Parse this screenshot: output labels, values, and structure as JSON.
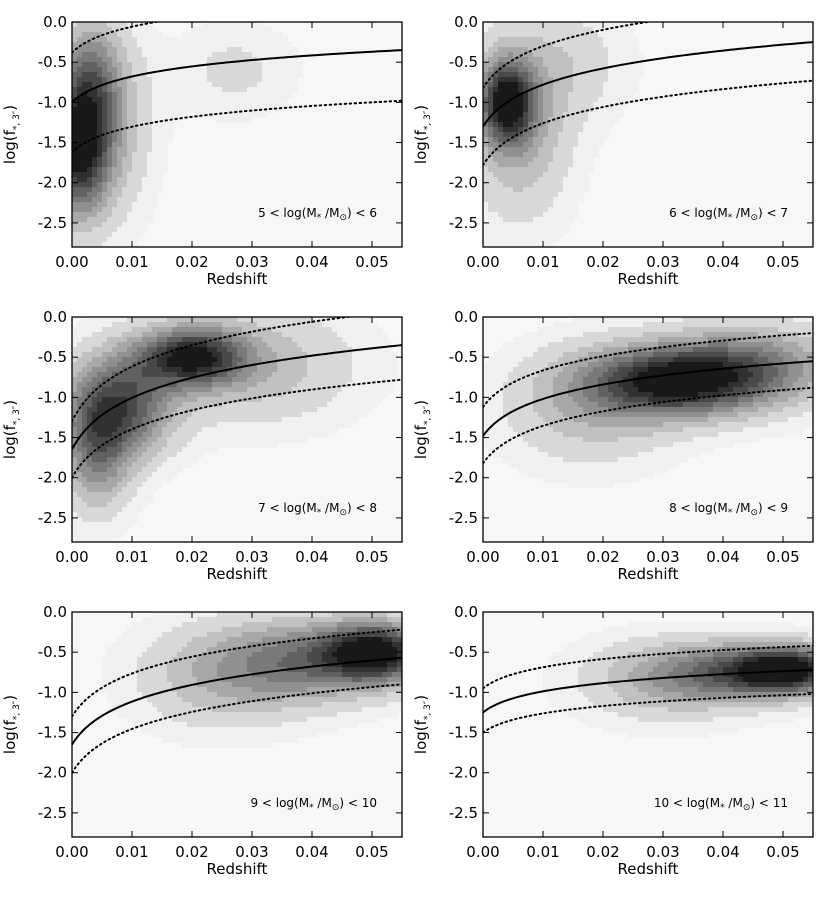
{
  "figure": {
    "xlabel": "Redshift",
    "ylabel_main": "log(f",
    "ylabel_sub": "*, 3″",
    "ylabel_close": ")"
  },
  "chart_data": [
    {
      "type": "heatmap",
      "panel": "5 < log(M*/M⊙) < 6",
      "annotation": {
        "pre": "5 < log(M",
        "sub1": "*",
        "mid": " /M",
        "sub2": "⊙",
        "post": ") < 6"
      },
      "xlabel": "Redshift",
      "ylabel": "log(f*, 3″)",
      "xlim": [
        0.0,
        0.055
      ],
      "ylim": [
        -2.8,
        0.0
      ],
      "xticks": [
        "0.00",
        "0.01",
        "0.02",
        "0.03",
        "0.04",
        "0.05"
      ],
      "yticks": [
        "0.0",
        "-0.5",
        "-1.0",
        "-1.5",
        "-2.0",
        "-2.5"
      ],
      "density_blobs": [
        {
          "x": 0.001,
          "y": -1.6,
          "sx": 0.0035,
          "sy": 0.55,
          "amp": 0.95
        },
        {
          "x": 0.003,
          "y": -0.7,
          "sx": 0.0035,
          "sy": 0.5,
          "amp": 0.45
        },
        {
          "x": 0.006,
          "y": -1.3,
          "sx": 0.005,
          "sy": 0.8,
          "amp": 0.3
        },
        {
          "x": 0.027,
          "y": -0.6,
          "sx": 0.007,
          "sy": 0.4,
          "amp": 0.14
        }
      ],
      "median_curve": {
        "y0": -1.0,
        "y_end": -0.35
      },
      "upper_curve": {
        "y0": -0.38,
        "y_end": 0.27
      },
      "lower_curve": {
        "y0": -1.62,
        "y_end": -0.98
      }
    },
    {
      "type": "heatmap",
      "panel": "6 < log(M*/M⊙) < 7",
      "annotation": {
        "pre": "6 < log(M",
        "sub1": "*",
        "mid": " /M",
        "sub2": "⊙",
        "post": ") < 7"
      },
      "xlabel": "Redshift",
      "ylabel": "log(f*, 3″)",
      "xlim": [
        0.0,
        0.055
      ],
      "ylim": [
        -2.8,
        0.0
      ],
      "xticks": [
        "0.00",
        "0.01",
        "0.02",
        "0.03",
        "0.04",
        "0.05"
      ],
      "yticks": [
        "0.0",
        "-0.5",
        "-1.0",
        "-1.5",
        "-2.0",
        "-2.5"
      ],
      "density_blobs": [
        {
          "x": 0.004,
          "y": -1.0,
          "sx": 0.003,
          "sy": 0.35,
          "amp": 0.95
        },
        {
          "x": 0.006,
          "y": -1.3,
          "sx": 0.006,
          "sy": 0.8,
          "amp": 0.35
        },
        {
          "x": 0.015,
          "y": -0.5,
          "sx": 0.007,
          "sy": 0.5,
          "amp": 0.15
        }
      ],
      "median_curve": {
        "y0": -1.3,
        "y_end": -0.25
      },
      "upper_curve": {
        "y0": -0.82,
        "y_end": 0.23
      },
      "lower_curve": {
        "y0": -1.78,
        "y_end": -0.73
      }
    },
    {
      "type": "heatmap",
      "panel": "7 < log(M*/M⊙) < 8",
      "annotation": {
        "pre": "7 < log(M",
        "sub1": "*",
        "mid": " /M",
        "sub2": "⊙",
        "post": ") < 8"
      },
      "xlabel": "Redshift",
      "ylabel": "log(f*, 3″)",
      "xlim": [
        0.0,
        0.055
      ],
      "ylim": [
        -2.8,
        0.0
      ],
      "xticks": [
        "0.00",
        "0.01",
        "0.02",
        "0.03",
        "0.04",
        "0.05"
      ],
      "yticks": [
        "0.0",
        "-0.5",
        "-1.0",
        "-1.5",
        "-2.0",
        "-2.5"
      ],
      "density_blobs": [
        {
          "x": 0.02,
          "y": -0.5,
          "sx": 0.006,
          "sy": 0.25,
          "amp": 0.9
        },
        {
          "x": 0.008,
          "y": -1.1,
          "sx": 0.006,
          "sy": 0.45,
          "amp": 0.75
        },
        {
          "x": 0.004,
          "y": -1.7,
          "sx": 0.004,
          "sy": 0.5,
          "amp": 0.5
        },
        {
          "x": 0.03,
          "y": -0.6,
          "sx": 0.012,
          "sy": 0.5,
          "amp": 0.3
        }
      ],
      "median_curve": {
        "y0": -1.65,
        "y_end": -0.35
      },
      "upper_curve": {
        "y0": -1.3,
        "y_end": 0.08
      },
      "lower_curve": {
        "y0": -2.0,
        "y_end": -0.78
      }
    },
    {
      "type": "heatmap",
      "panel": "8 < log(M*/M⊙) < 9",
      "annotation": {
        "pre": "8 < log(M",
        "sub1": "*",
        "mid": " /M",
        "sub2": "⊙",
        "post": ") < 9"
      },
      "xlabel": "Redshift",
      "ylabel": "log(f*, 3″)",
      "xlim": [
        0.0,
        0.055
      ],
      "ylim": [
        -2.8,
        0.0
      ],
      "xticks": [
        "0.00",
        "0.01",
        "0.02",
        "0.03",
        "0.04",
        "0.05"
      ],
      "yticks": [
        "0.0",
        "-0.5",
        "-1.0",
        "-1.5",
        "-2.0",
        "-2.5"
      ],
      "density_blobs": [
        {
          "x": 0.032,
          "y": -0.8,
          "sx": 0.01,
          "sy": 0.3,
          "amp": 0.95
        },
        {
          "x": 0.045,
          "y": -0.6,
          "sx": 0.01,
          "sy": 0.35,
          "amp": 0.5
        },
        {
          "x": 0.018,
          "y": -1.1,
          "sx": 0.01,
          "sy": 0.5,
          "amp": 0.3
        }
      ],
      "median_curve": {
        "y0": -1.48,
        "y_end": -0.55
      },
      "upper_curve": {
        "y0": -1.12,
        "y_end": -0.2
      },
      "lower_curve": {
        "y0": -1.82,
        "y_end": -0.88
      }
    },
    {
      "type": "heatmap",
      "panel": "9 < log(M*/M⊙) < 10",
      "annotation": {
        "pre": "9 < log(M",
        "sub1": "*",
        "mid": " /M",
        "sub2": "⊙",
        "post": ") < 10"
      },
      "xlabel": "Redshift",
      "ylabel": "log(f*, 3″)",
      "xlim": [
        0.0,
        0.055
      ],
      "ylim": [
        -2.8,
        0.0
      ],
      "xticks": [
        "0.00",
        "0.01",
        "0.02",
        "0.03",
        "0.04",
        "0.05"
      ],
      "yticks": [
        "0.0",
        "-0.5",
        "-1.0",
        "-1.5",
        "-2.0",
        "-2.5"
      ],
      "density_blobs": [
        {
          "x": 0.051,
          "y": -0.5,
          "sx": 0.006,
          "sy": 0.25,
          "amp": 0.95
        },
        {
          "x": 0.04,
          "y": -0.6,
          "sx": 0.01,
          "sy": 0.35,
          "amp": 0.55
        },
        {
          "x": 0.025,
          "y": -0.8,
          "sx": 0.01,
          "sy": 0.45,
          "amp": 0.3
        }
      ],
      "median_curve": {
        "y0": -1.65,
        "y_end": -0.57
      },
      "upper_curve": {
        "y0": -1.3,
        "y_end": -0.22
      },
      "lower_curve": {
        "y0": -2.0,
        "y_end": -0.9
      }
    },
    {
      "type": "heatmap",
      "panel": "10 < log(M*/M⊙) < 11",
      "annotation": {
        "pre": "10 < log(M",
        "sub1": "*",
        "mid": " /M",
        "sub2": "⊙",
        "post": ") < 11"
      },
      "xlabel": "Redshift",
      "ylabel": "log(f*, 3″)",
      "xlim": [
        0.0,
        0.055
      ],
      "ylim": [
        -2.8,
        0.0
      ],
      "xticks": [
        "0.00",
        "0.01",
        "0.02",
        "0.03",
        "0.04",
        "0.05"
      ],
      "yticks": [
        "0.0",
        "-0.5",
        "-1.0",
        "-1.5",
        "-2.0",
        "-2.5"
      ],
      "density_blobs": [
        {
          "x": 0.051,
          "y": -0.72,
          "sx": 0.006,
          "sy": 0.2,
          "amp": 0.95
        },
        {
          "x": 0.042,
          "y": -0.75,
          "sx": 0.009,
          "sy": 0.25,
          "amp": 0.55
        },
        {
          "x": 0.03,
          "y": -0.85,
          "sx": 0.01,
          "sy": 0.35,
          "amp": 0.3
        }
      ],
      "median_curve": {
        "y0": -1.25,
        "y_end": -0.72
      },
      "upper_curve": {
        "y0": -0.95,
        "y_end": -0.42
      },
      "lower_curve": {
        "y0": -1.5,
        "y_end": -1.02
      }
    }
  ]
}
